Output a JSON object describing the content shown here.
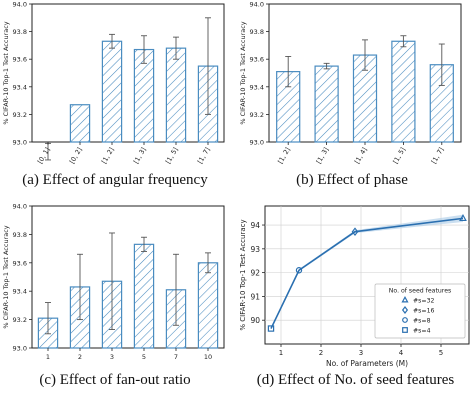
{
  "colors": {
    "bar_edge": "#4a8cc0",
    "error_bar": "#555555",
    "line": "#2a6fb0",
    "band": "#a9c9e6"
  },
  "chart_data": [
    {
      "id": "a",
      "type": "bar",
      "title": "",
      "ylabel": "% CIFAR-10 Top-1 Test Accuracy",
      "xlabel": "",
      "categories": [
        "[0, 1]",
        "[0, 2]",
        "[1, 2]",
        "[1, 3]",
        "[1, 5]",
        "[1, 7]"
      ],
      "values": [
        92.93,
        93.27,
        93.73,
        93.67,
        93.68,
        93.55
      ],
      "errors": [
        0.06,
        0.0,
        0.05,
        0.1,
        0.08,
        0.35
      ],
      "ylim": [
        93.0,
        94.0
      ],
      "yticks": [
        "93.0",
        "93.2",
        "93.4",
        "93.6",
        "93.8",
        "94.0"
      ],
      "ytick_values": [
        93.0,
        93.2,
        93.4,
        93.6,
        93.8,
        94.0
      ],
      "rotate_xticks": true,
      "caption": "(a) Effect of angular frequency"
    },
    {
      "id": "b",
      "type": "bar",
      "title": "",
      "ylabel": "% CIFAR-10 Top-1 Test Accuracy",
      "xlabel": "",
      "categories": [
        "[1, 2]",
        "[1, 3]",
        "[1, 4]",
        "[1, 5]",
        "[1, 7]"
      ],
      "values": [
        93.51,
        93.55,
        93.63,
        93.73,
        93.56
      ],
      "errors": [
        0.11,
        0.02,
        0.11,
        0.04,
        0.15
      ],
      "ylim": [
        93.0,
        94.0
      ],
      "yticks": [
        "93.0",
        "93.2",
        "93.4",
        "93.6",
        "93.8",
        "94.0"
      ],
      "ytick_values": [
        93.0,
        93.2,
        93.4,
        93.6,
        93.8,
        94.0
      ],
      "rotate_xticks": true,
      "caption": "(b) Effect of phase"
    },
    {
      "id": "c",
      "type": "bar",
      "title": "",
      "ylabel": "% CIFAR-10 Top-1 Test Accuracy",
      "xlabel": "",
      "categories": [
        "1",
        "2",
        "3",
        "5",
        "7",
        "10"
      ],
      "values": [
        93.21,
        93.43,
        93.47,
        93.73,
        93.41,
        93.6
      ],
      "errors": [
        0.11,
        0.23,
        0.34,
        0.05,
        0.25,
        0.07
      ],
      "ylim": [
        93.0,
        94.0
      ],
      "yticks": [
        "93.0",
        "93.2",
        "93.4",
        "93.6",
        "93.8",
        "94.0"
      ],
      "ytick_values": [
        93.0,
        93.2,
        93.4,
        93.6,
        93.8,
        94.0
      ],
      "rotate_xticks": false,
      "caption": "(c) Effect of fan-out ratio"
    },
    {
      "id": "d",
      "type": "line",
      "title": "",
      "ylabel": "% CIFAR-10 Top-1 Test Accuracy",
      "xlabel": "No. of Parameters (M)",
      "xlim": [
        0.6,
        5.7
      ],
      "ylim": [
        89.0,
        94.8
      ],
      "xticks": [
        1,
        2,
        3,
        4,
        5
      ],
      "yticks": [
        90,
        91,
        92,
        93,
        94
      ],
      "grid": true,
      "series": [
        {
          "name": "#s=4",
          "marker": "square",
          "x": 0.75,
          "y": 89.65
        },
        {
          "name": "#s=8",
          "marker": "circle",
          "x": 1.45,
          "y": 92.1
        },
        {
          "name": "#s=16",
          "marker": "diamond",
          "x": 2.85,
          "y": 93.72
        },
        {
          "name": "#s=32",
          "marker": "triangle",
          "x": 5.55,
          "y": 94.28
        }
      ],
      "line_x": [
        0.75,
        1.45,
        2.85,
        5.55
      ],
      "line_y": [
        89.65,
        92.1,
        93.72,
        94.28
      ],
      "band": [
        0.02,
        0.05,
        0.06,
        0.15
      ],
      "legend": {
        "title": "No. of seed features",
        "placement": "lower-right",
        "entries": [
          "#s=32",
          "#s=16",
          "#s=8",
          "#s=4"
        ]
      },
      "caption": "(d) Effect of No. of seed features"
    }
  ]
}
